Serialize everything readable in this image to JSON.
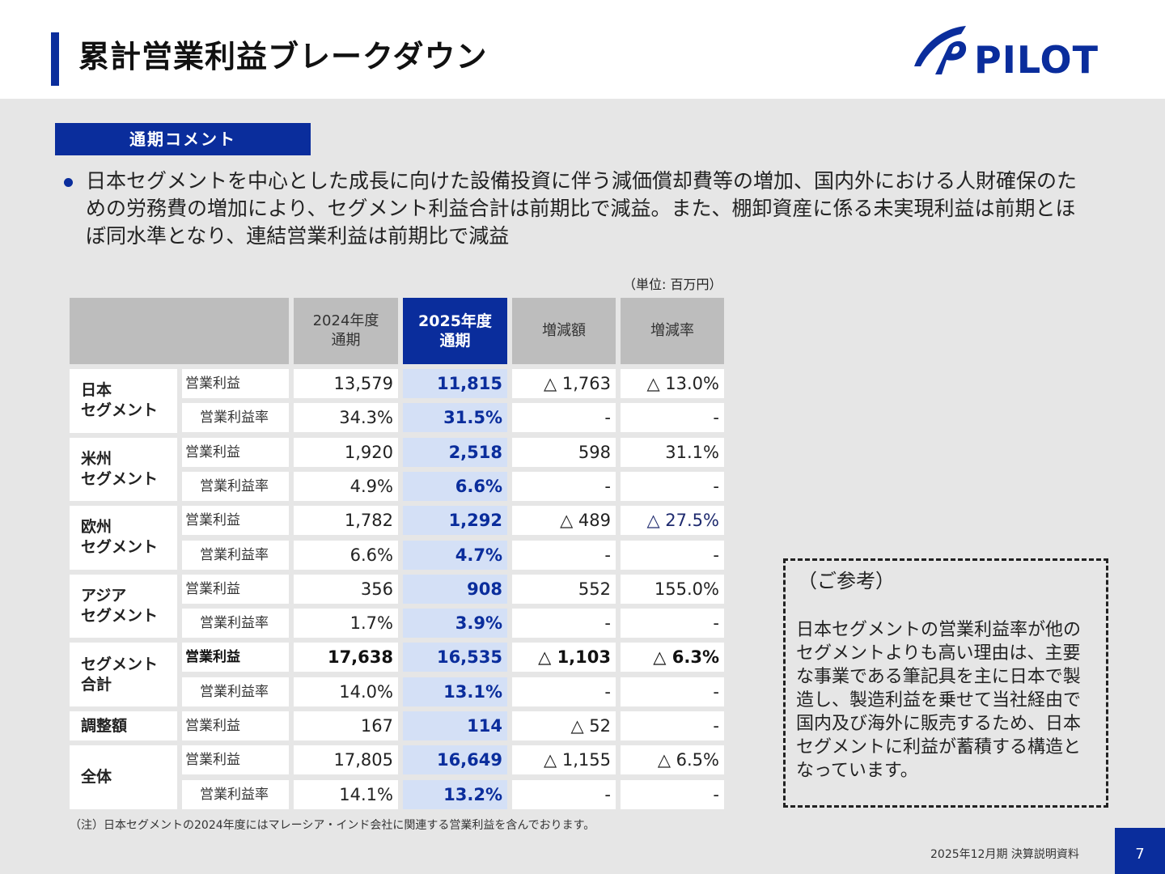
{
  "header": {
    "title": "累計営業利益ブレークダウン",
    "logo_text": "PILOT",
    "brand_color": "#0a2d9c"
  },
  "comment": {
    "label": "通期コメント",
    "text": "日本セグメントを中心とした成長に向けた設備投資に伴う減価償却費等の増加、国内外における人財確保のための労務費の増加により、セグメント利益合計は前期比で減益。また、棚卸資産に係る未実現利益は前期とほぼ同水準となり、連結営業利益は前期比で減益"
  },
  "table": {
    "unit": "（単位: 百万円）",
    "headers": {
      "y2024": "2024年度\n通期",
      "y2025": "2025年度\n通期",
      "diff": "増減額",
      "rate": "増減率"
    },
    "segments": [
      {
        "name": "日本\nセグメント",
        "rows": [
          {
            "label": "営業利益",
            "y2024": "13,579",
            "y2025": "11,815",
            "diff": "△ 1,763",
            "rate": "△ 13.0%"
          },
          {
            "label": "営業利益率",
            "y2024": "34.3%",
            "y2025": "31.5%",
            "diff": "-",
            "rate": "-"
          }
        ]
      },
      {
        "name": "米州\nセグメント",
        "rows": [
          {
            "label": "営業利益",
            "y2024": "1,920",
            "y2025": "2,518",
            "diff": "598",
            "rate": "31.1%"
          },
          {
            "label": "営業利益率",
            "y2024": "4.9%",
            "y2025": "6.6%",
            "diff": "-",
            "rate": "-"
          }
        ]
      },
      {
        "name": "欧州\nセグメント",
        "rows": [
          {
            "label": "営業利益",
            "y2024": "1,782",
            "y2025": "1,292",
            "diff": "△ 489",
            "rate": "△ 27.5%"
          },
          {
            "label": "営業利益率",
            "y2024": "6.6%",
            "y2025": "4.7%",
            "diff": "-",
            "rate": "-"
          }
        ]
      },
      {
        "name": "アジア\nセグメント",
        "rows": [
          {
            "label": "営業利益",
            "y2024": "356",
            "y2025": "908",
            "diff": "552",
            "rate": "155.0%"
          },
          {
            "label": "営業利益率",
            "y2024": "1.7%",
            "y2025": "3.9%",
            "diff": "-",
            "rate": "-"
          }
        ]
      },
      {
        "name": "セグメント\n合計",
        "rows": [
          {
            "label": "営業利益",
            "y2024": "17,638",
            "y2025": "16,535",
            "diff": "△ 1,103",
            "rate": "△ 6.3%"
          },
          {
            "label": "営業利益率",
            "y2024": "14.0%",
            "y2025": "13.1%",
            "diff": "-",
            "rate": "-"
          }
        ]
      },
      {
        "name": "調整額",
        "rows": [
          {
            "label": "営業利益",
            "y2024": "167",
            "y2025": "114",
            "diff": "△ 52",
            "rate": "-"
          }
        ]
      },
      {
        "name": "全体",
        "rows": [
          {
            "label": "営業利益",
            "y2024": "17,805",
            "y2025": "16,649",
            "diff": "△ 1,155",
            "rate": "△ 6.5%"
          },
          {
            "label": "営業利益率",
            "y2024": "14.1%",
            "y2025": "13.2%",
            "diff": "-",
            "rate": "-"
          }
        ]
      }
    ],
    "note": "（注）日本セグメントの2024年度にはマレーシア・インド会社に関連する営業利益を含んでおります。"
  },
  "reference": {
    "title": "（ご参考）",
    "text": "日本セグメントの営業利益率が他のセグメントよりも高い理由は、主要な事業である筆記具を主に日本で製造し、製造利益を乗せて当社経由で国内及び海外に販売するため、日本セグメントに利益が蓄積する構造となっています。"
  },
  "footer": {
    "doc_title": "2025年12月期 決算説明資料",
    "page": "7"
  }
}
